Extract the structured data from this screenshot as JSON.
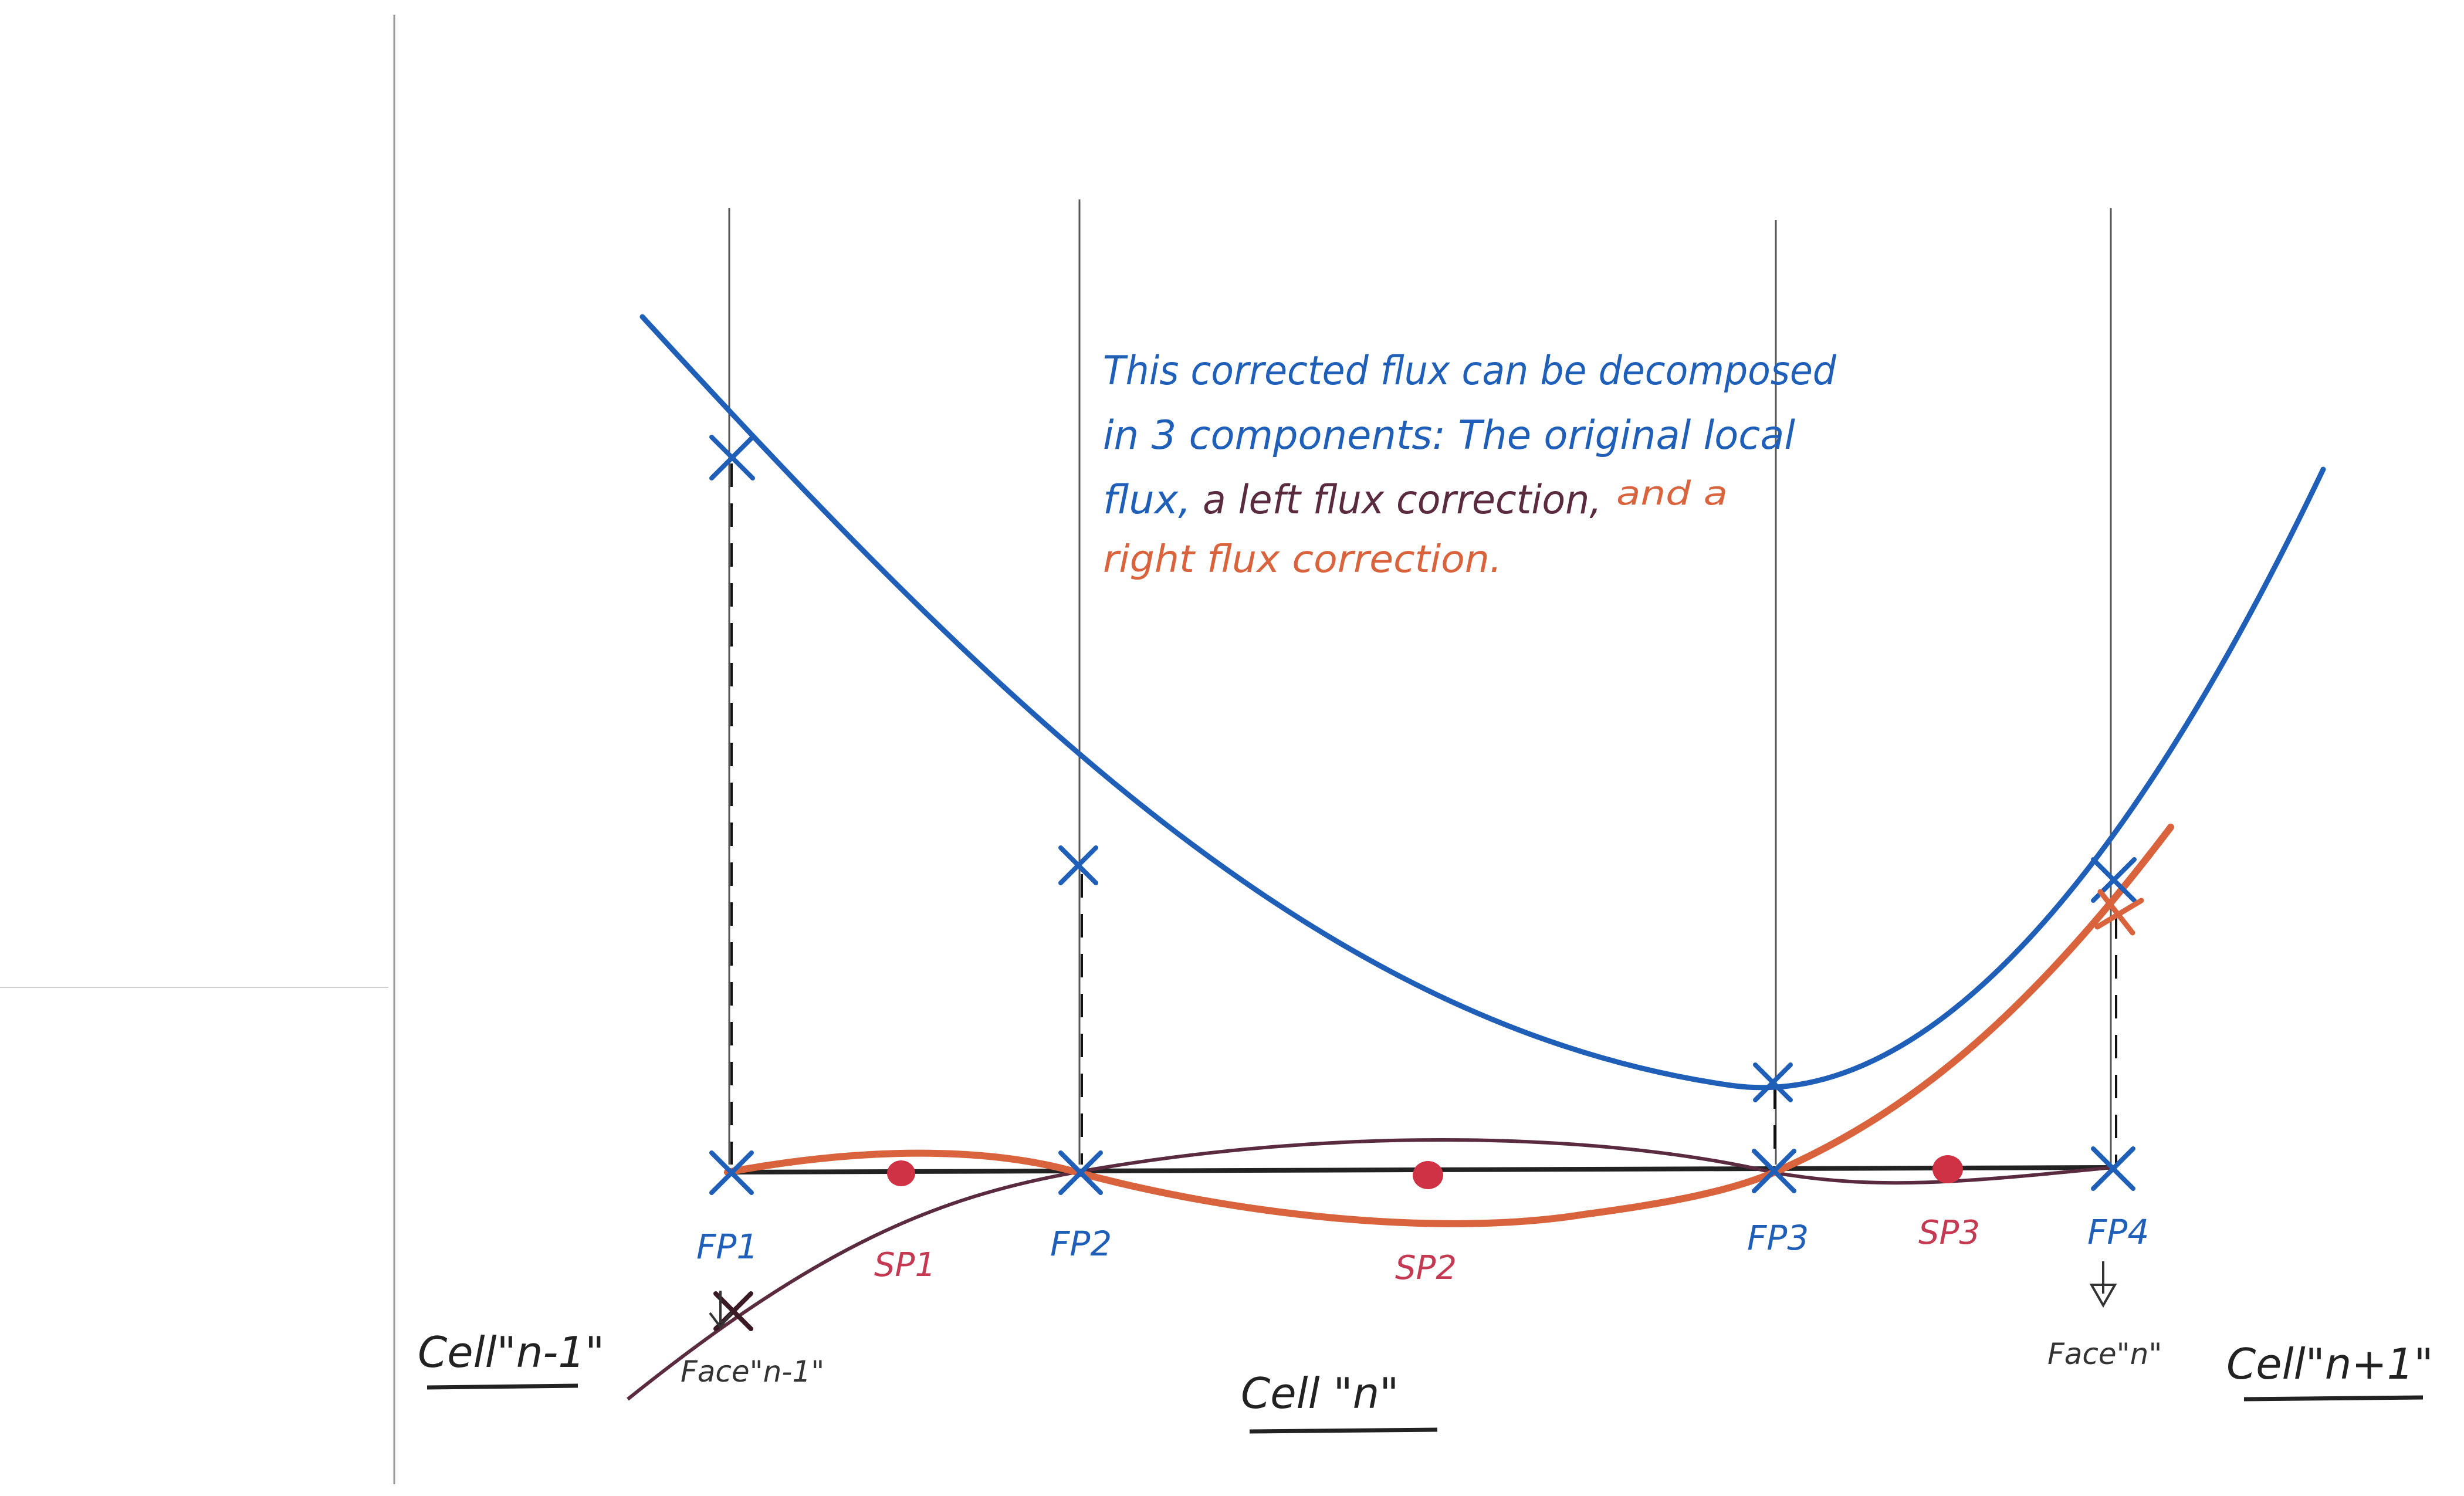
{
  "annotation": {
    "line1": "This corrected flux can be decomposed",
    "line2": "in 3 components: The original local",
    "line3_a": "flux,",
    "line3_b": "a left flux correction,",
    "line3_c": "and a",
    "line4": "right flux correction."
  },
  "flux_points": {
    "fp1": "FP1",
    "fp2": "FP2",
    "fp3": "FP3",
    "fp4": "FP4"
  },
  "solution_points": {
    "sp1": "SP1",
    "sp2": "SP2",
    "sp3": "SP3"
  },
  "faces": {
    "left": "Face\"n-1\"",
    "right": "Face\"n\""
  },
  "cells": {
    "left": "Cell\"n-1\"",
    "center": "Cell \"n\"",
    "right": "Cell\"n+1\""
  },
  "colors": {
    "blue": "#1f5fb8",
    "dark_purple": "#5a2a3e",
    "orange": "#d8633c",
    "red_dot": "#cf3245",
    "sp_label": "#c43a52",
    "axis": "#222222",
    "guide": "#555555"
  }
}
